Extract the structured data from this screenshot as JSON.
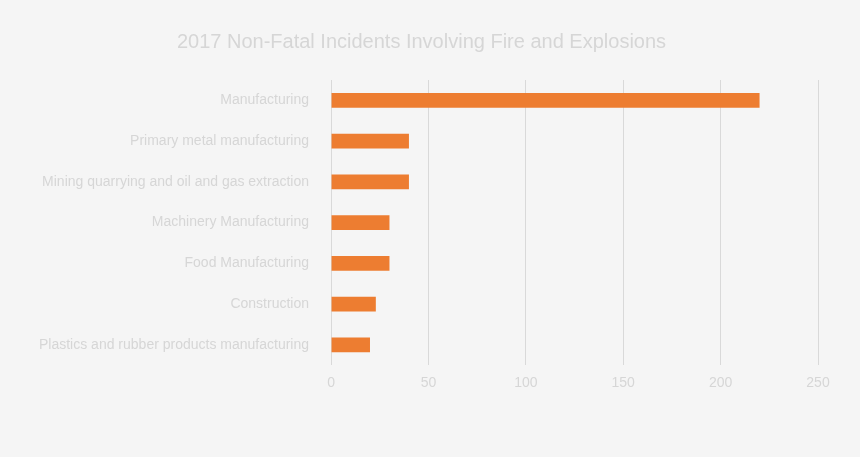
{
  "chart_data": {
    "type": "bar",
    "orientation": "horizontal",
    "title": "2017 Non-Fatal Incidents Involving Fire and Explosions",
    "categories": [
      "Manufacturing",
      "Primary metal manufacturing",
      "Mining quarrying and oil and gas extraction",
      "Machinery Manufacturing",
      "Food Manufacturing",
      "Construction",
      "Plastics and rubber products manufacturing"
    ],
    "values": [
      220,
      40,
      40,
      30,
      30,
      23,
      20
    ],
    "color": "#ed7d31",
    "xlim": [
      0,
      250
    ],
    "xticks": [
      0,
      50,
      100,
      150,
      200,
      250
    ],
    "grid": true
  }
}
